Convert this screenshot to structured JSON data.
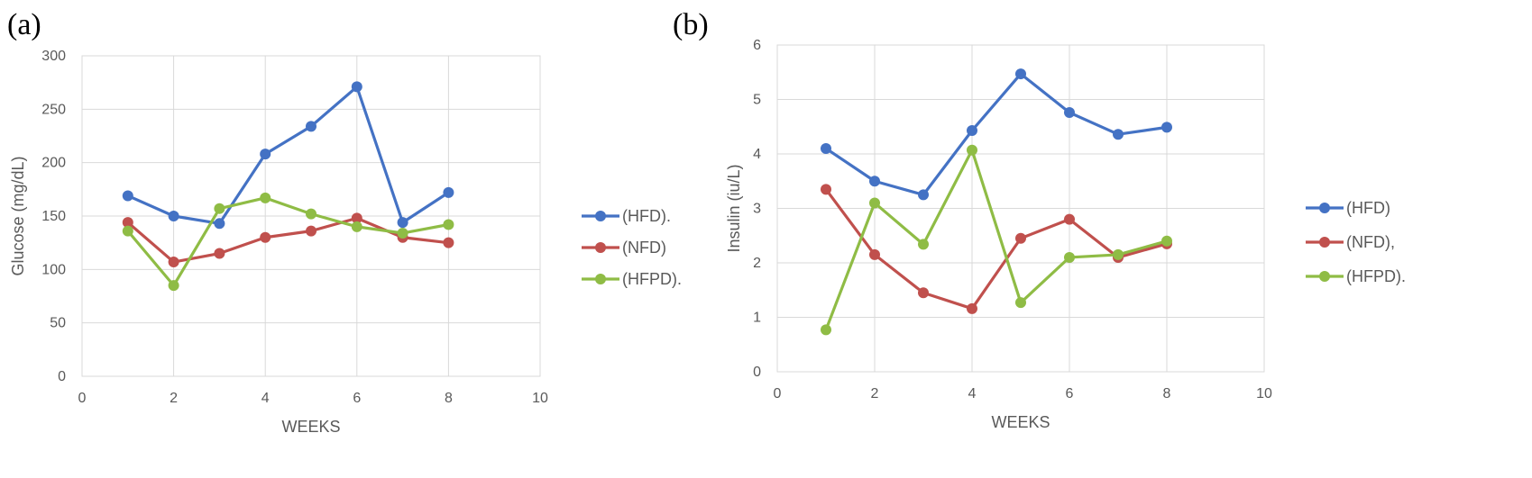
{
  "chart_data": [
    {
      "panel_label": "(a)",
      "type": "line",
      "xlabel": "WEEKS",
      "ylabel": "Glucose (mg/dL)",
      "xlim": [
        0,
        10
      ],
      "ylim": [
        0,
        300
      ],
      "xticks": [
        0,
        2,
        4,
        6,
        8,
        10
      ],
      "yticks": [
        0,
        50,
        100,
        150,
        200,
        250,
        300
      ],
      "grid": true,
      "legend_position": "right",
      "x": [
        1,
        2,
        3,
        4,
        5,
        6,
        7,
        8
      ],
      "series": [
        {
          "name": "(HFD).",
          "color": "#4472c4",
          "values": [
            169,
            150,
            143,
            208,
            234,
            271,
            144,
            172
          ]
        },
        {
          "name": "(NFD)",
          "color": "#c0504d",
          "values": [
            144,
            107,
            115,
            130,
            136,
            148,
            130,
            125
          ]
        },
        {
          "name": "(HFPD).",
          "color": "#8fbc45",
          "values": [
            136,
            85,
            157,
            167,
            152,
            140,
            134,
            142
          ]
        }
      ]
    },
    {
      "panel_label": "(b)",
      "type": "line",
      "xlabel": "WEEKS",
      "ylabel": "Insulin (iu/L)",
      "xlim": [
        0,
        10
      ],
      "ylim": [
        0,
        6
      ],
      "xticks": [
        0,
        2,
        4,
        6,
        8,
        10
      ],
      "yticks": [
        0,
        1,
        2,
        3,
        4,
        5,
        6
      ],
      "grid": true,
      "legend_position": "right",
      "x": [
        1,
        2,
        3,
        4,
        5,
        6,
        7,
        8
      ],
      "series": [
        {
          "name": "(HFD)",
          "color": "#4472c4",
          "values": [
            4.1,
            3.5,
            3.25,
            4.43,
            5.47,
            4.76,
            4.36,
            4.49
          ]
        },
        {
          "name": "(NFD),",
          "color": "#c0504d",
          "values": [
            3.35,
            2.15,
            1.45,
            1.16,
            2.45,
            2.8,
            2.1,
            2.35
          ]
        },
        {
          "name": "(HFPD).",
          "color": "#8fbc45",
          "values": [
            0.77,
            3.1,
            2.34,
            4.07,
            1.27,
            2.1,
            2.15,
            2.4
          ]
        }
      ]
    }
  ]
}
